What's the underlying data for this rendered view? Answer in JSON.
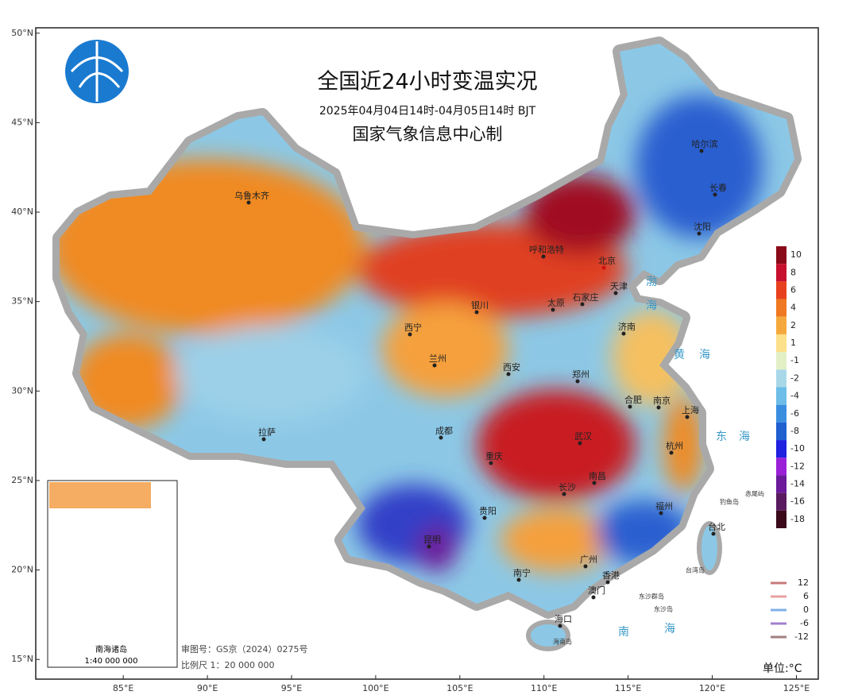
{
  "map": {
    "title": "全国近24小时变温实况",
    "subtitle": "2025年04月04日14时-04月05日14时 BJT",
    "producer": "国家气象信息中心制",
    "lon_range": [
      79.8,
      126.3
    ],
    "lat_range": [
      13.9,
      50.3
    ],
    "lat_ticks": [
      {
        "value": 50,
        "label": "50°N"
      },
      {
        "value": 45,
        "label": "45°N"
      },
      {
        "value": 40,
        "label": "40°N"
      },
      {
        "value": 35,
        "label": "35°N"
      },
      {
        "value": 30,
        "label": "30°N"
      },
      {
        "value": 25,
        "label": "25°N"
      },
      {
        "value": 20,
        "label": "20°N"
      },
      {
        "value": 15,
        "label": "15°N"
      }
    ],
    "lon_ticks": [
      {
        "value": 85,
        "label": "85°E"
      },
      {
        "value": 90,
        "label": "90°E"
      },
      {
        "value": 95,
        "label": "95°E"
      },
      {
        "value": 100,
        "label": "100°E"
      },
      {
        "value": 105,
        "label": "105°E"
      },
      {
        "value": 110,
        "label": "110°E"
      },
      {
        "value": 115,
        "label": "115°E"
      },
      {
        "value": 120,
        "label": "120°E"
      },
      {
        "value": 125,
        "label": "125°E"
      }
    ],
    "cities": [
      "乌鲁木齐",
      "呼和浩特",
      "北京",
      "天津",
      "石家庄",
      "银川",
      "太原",
      "济南",
      "西宁",
      "兰州",
      "西安",
      "郑州",
      "合肥",
      "南京",
      "上海",
      "拉萨",
      "成都",
      "武汉",
      "杭州",
      "重庆",
      "南昌",
      "长沙",
      "福州",
      "贵阳",
      "昆明",
      "台北",
      "南宁",
      "广州",
      "香港",
      "澳门",
      "海口",
      "沈阳",
      "长春",
      "哈尔滨"
    ],
    "small_labels": [
      "海南岛",
      "台湾岛",
      "钓鱼岛",
      "赤尾屿",
      "东沙群岛",
      "东沙岛"
    ],
    "seas": [
      "渤",
      "海",
      "黄",
      "海",
      "东",
      "海",
      "南",
      "海"
    ],
    "color_legend": [
      {
        "value": 10,
        "color": "#8b0a1a"
      },
      {
        "value": 8,
        "color": "#c8102e"
      },
      {
        "value": 6,
        "color": "#e8401c"
      },
      {
        "value": 4,
        "color": "#f07820"
      },
      {
        "value": 2,
        "color": "#f5a93c"
      },
      {
        "value": 1,
        "color": "#fde08a"
      },
      {
        "value": -1,
        "color": "#e2f0c6"
      },
      {
        "value": -2,
        "color": "#a8d8e8"
      },
      {
        "value": -4,
        "color": "#6cbde8"
      },
      {
        "value": -6,
        "color": "#3a8ee0"
      },
      {
        "value": -8,
        "color": "#1f5fd0"
      },
      {
        "value": -10,
        "color": "#2020e0"
      },
      {
        "value": -12,
        "color": "#9a20d8"
      },
      {
        "value": -14,
        "color": "#6a1a9a"
      },
      {
        "value": -16,
        "color": "#5a1a60"
      },
      {
        "value": -18,
        "color": "#3a0a1a"
      }
    ],
    "contour_legend": [
      {
        "value": 12,
        "color": "#c87878"
      },
      {
        "value": 6,
        "color": "#e8a0a0"
      },
      {
        "value": 0,
        "color": "#80b0e8"
      },
      {
        "value": -6,
        "color": "#a080d0"
      },
      {
        "value": -12,
        "color": "#a08080"
      }
    ],
    "unit": "单位:°C",
    "approval": "审图号：GS京（2024）0275号",
    "scale": "比例尺 1：20 000 000",
    "inset_title": "南海诸岛",
    "inset_scale": "1:40 000 000"
  }
}
